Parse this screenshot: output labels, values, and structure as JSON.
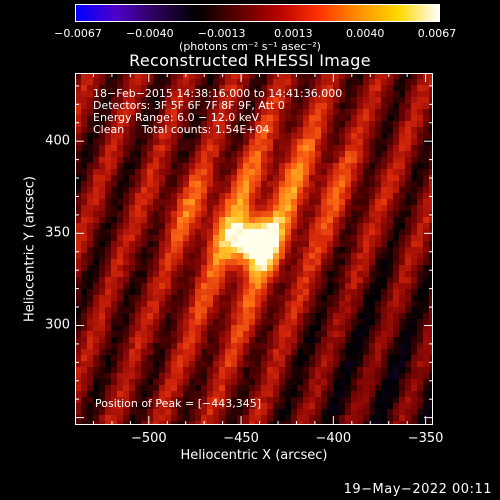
{
  "chart_data": {
    "type": "heatmap",
    "title": "Reconstructed RHESSI Image",
    "xlabel": "Heliocentric X (arcsec)",
    "ylabel": "Heliocentric Y (arcsec)",
    "xlim": [
      -540,
      -346
    ],
    "ylim": [
      246,
      437
    ],
    "xticks": [
      -500,
      -450,
      -400,
      -350
    ],
    "xtick_labels": [
      "−500",
      "−450",
      "−400",
      "−350"
    ],
    "yticks": [
      300,
      350,
      400
    ],
    "ytick_labels": [
      "300",
      "350",
      "400"
    ],
    "colorbar": {
      "min": -0.0067,
      "max": 0.0067,
      "tick_labels": [
        "−0.0067",
        "−0.0040",
        "−0.0013",
        "0.0013",
        "0.0040",
        "0.0067"
      ],
      "units": "(photons cm⁻² s⁻¹ asec⁻²)",
      "colormap": [
        "#0000ff",
        "#5000c8",
        "#2a0055",
        "#000000",
        "#5a0000",
        "#b40000",
        "#ff3000",
        "#ff9000",
        "#ffd800",
        "#ffffff"
      ]
    },
    "peak": {
      "x": -443,
      "y": 345,
      "label": "Position of Peak = [−443,345]"
    },
    "annotations": [
      "18−Feb−2015 14:38:16.000 to 14:41:36.000",
      "Detectors: 3F 5F 6F 7F 8F 9F, Att 0",
      "Energy Range: 6.0 − 12.0 keV",
      "Clean     Total counts: 1.54E+04"
    ]
  },
  "footer": "19−May−2022 00:11"
}
